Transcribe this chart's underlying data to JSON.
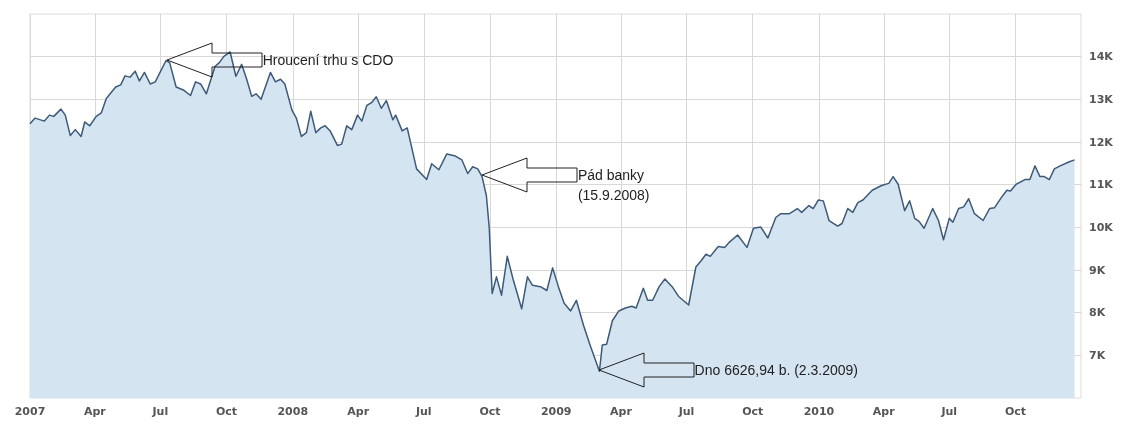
{
  "chart_data": {
    "type": "area",
    "x": [
      "2007-01-01",
      "2007-01-08",
      "2007-01-21",
      "2007-01-28",
      "2007-02-03",
      "2007-02-13",
      "2007-02-19",
      "2007-02-26",
      "2007-03-05",
      "2007-03-13",
      "2007-03-18",
      "2007-03-25",
      "2007-04-03",
      "2007-04-10",
      "2007-04-17",
      "2007-04-30",
      "2007-05-07",
      "2007-05-13",
      "2007-05-20",
      "2007-05-27",
      "2007-06-02",
      "2007-06-09",
      "2007-06-17",
      "2007-06-24",
      "2007-07-09",
      "2007-07-14",
      "2007-07-23",
      "2007-08-02",
      "2007-08-12",
      "2007-08-19",
      "2007-08-26",
      "2007-09-03",
      "2007-09-15",
      "2007-09-21",
      "2007-09-27",
      "2007-10-06",
      "2007-10-14",
      "2007-10-22",
      "2007-10-29",
      "2007-11-05",
      "2007-11-11",
      "2007-11-18",
      "2007-12-01",
      "2007-12-08",
      "2007-12-15",
      "2007-12-21",
      "2007-12-31",
      "2008-01-06",
      "2008-01-13",
      "2008-01-20",
      "2008-01-26",
      "2008-02-02",
      "2008-02-09",
      "2008-02-15",
      "2008-02-22",
      "2008-03-03",
      "2008-03-09",
      "2008-03-16",
      "2008-03-23",
      "2008-03-31",
      "2008-04-06",
      "2008-04-13",
      "2008-04-20",
      "2008-04-26",
      "2008-05-03",
      "2008-05-10",
      "2008-05-19",
      "2008-05-23",
      "2008-06-01",
      "2008-06-08",
      "2008-06-21",
      "2008-07-05",
      "2008-07-12",
      "2008-07-22",
      "2008-08-02",
      "2008-08-14",
      "2008-08-23",
      "2008-08-31",
      "2008-09-07",
      "2008-09-14",
      "2008-09-20",
      "2008-09-26",
      "2008-09-30",
      "2008-10-04",
      "2008-10-10",
      "2008-10-17",
      "2008-10-25",
      "2008-11-02",
      "2008-11-14",
      "2008-11-22",
      "2008-11-29",
      "2008-12-10",
      "2008-12-19",
      "2008-12-27",
      "2009-01-04",
      "2009-01-12",
      "2009-01-21",
      "2009-01-29",
      "2009-02-08",
      "2009-02-17",
      "2009-03-02",
      "2009-03-06",
      "2009-03-12",
      "2009-03-20",
      "2009-03-29",
      "2009-04-07",
      "2009-04-16",
      "2009-04-22",
      "2009-05-02",
      "2009-05-08",
      "2009-05-15",
      "2009-05-24",
      "2009-06-01",
      "2009-06-11",
      "2009-06-20",
      "2009-07-04",
      "2009-07-14",
      "2009-07-21",
      "2009-07-28",
      "2009-08-03",
      "2009-08-14",
      "2009-08-23",
      "2009-08-30",
      "2009-09-10",
      "2009-09-23",
      "2009-10-02",
      "2009-10-12",
      "2009-10-22",
      "2009-11-02",
      "2009-11-09",
      "2009-11-21",
      "2009-12-02",
      "2009-12-08",
      "2009-12-18",
      "2009-12-24",
      "2009-12-31",
      "2010-01-07",
      "2010-01-15",
      "2010-01-27",
      "2010-02-02",
      "2010-02-10",
      "2010-02-17",
      "2010-02-24",
      "2010-03-03",
      "2010-03-16",
      "2010-03-29",
      "2010-04-08",
      "2010-04-14",
      "2010-04-21",
      "2010-04-30",
      "2010-05-07",
      "2010-05-14",
      "2010-05-20",
      "2010-05-27",
      "2010-06-08",
      "2010-06-16",
      "2010-06-23",
      "2010-07-01",
      "2010-07-06",
      "2010-07-14",
      "2010-07-21",
      "2010-07-28",
      "2010-08-05",
      "2010-08-17",
      "2010-08-26",
      "2010-09-02",
      "2010-09-11",
      "2010-09-19",
      "2010-09-24",
      "2010-10-02",
      "2010-10-14",
      "2010-10-21",
      "2010-10-28",
      "2010-11-04",
      "2010-11-10",
      "2010-11-17",
      "2010-11-24",
      "2010-12-02",
      "2010-12-14",
      "2010-12-22"
    ],
    "series": [
      {
        "color": "#3d5a78",
        "values": [
          12430,
          12560,
          12490,
          12630,
          12600,
          12770,
          12630,
          12150,
          12290,
          12130,
          12470,
          12380,
          12600,
          12680,
          13020,
          13290,
          13340,
          13550,
          13520,
          13660,
          13430,
          13630,
          13360,
          13410,
          13910,
          13860,
          13290,
          13220,
          13090,
          13410,
          13360,
          13130,
          13770,
          13860,
          14000,
          14110,
          13540,
          13820,
          13470,
          13070,
          13130,
          13000,
          13630,
          13410,
          13470,
          13360,
          12740,
          12560,
          12130,
          12220,
          12720,
          12220,
          12330,
          12380,
          12260,
          11920,
          11950,
          12380,
          12290,
          12630,
          12490,
          12860,
          12930,
          13060,
          12790,
          12970,
          12520,
          12630,
          12260,
          12330,
          11370,
          11120,
          11490,
          11350,
          11720,
          11670,
          11580,
          11260,
          11420,
          11370,
          11190,
          10740,
          9980,
          8450,
          8840,
          8410,
          9320,
          8790,
          8090,
          8840,
          8640,
          8610,
          8520,
          9050,
          8610,
          8220,
          8040,
          8290,
          7700,
          7240,
          6626.94,
          7240,
          7260,
          7810,
          8040,
          8110,
          8150,
          8110,
          8570,
          8290,
          8290,
          8610,
          8790,
          8610,
          8380,
          8180,
          9070,
          9210,
          9370,
          9320,
          9550,
          9530,
          9660,
          9820,
          9530,
          9980,
          10010,
          9750,
          10230,
          10320,
          10320,
          10440,
          10350,
          10510,
          10440,
          10640,
          10620,
          10160,
          10030,
          10090,
          10440,
          10350,
          10580,
          10640,
          10870,
          10980,
          11030,
          11190,
          11010,
          10390,
          10620,
          10210,
          10140,
          9980,
          10440,
          10160,
          9710,
          10210,
          10120,
          10440,
          10480,
          10670,
          10320,
          10160,
          10440,
          10460,
          10690,
          10870,
          10850,
          11010,
          11120,
          11120,
          11440,
          11190,
          11190,
          11120,
          11370,
          11440,
          11530,
          11580
        ]
      }
    ],
    "xlim": [
      "2007-01-01",
      "2010-12-31"
    ],
    "xticks": [
      {
        "value": "2007-01-01",
        "label": "2007"
      },
      {
        "value": "2007-04-01",
        "label": "Apr"
      },
      {
        "value": "2007-07-01",
        "label": "Jul"
      },
      {
        "value": "2007-10-01",
        "label": "Oct"
      },
      {
        "value": "2008-01-01",
        "label": "2008"
      },
      {
        "value": "2008-04-01",
        "label": "Apr"
      },
      {
        "value": "2008-07-01",
        "label": "Jul"
      },
      {
        "value": "2008-10-01",
        "label": "Oct"
      },
      {
        "value": "2009-01-01",
        "label": "2009"
      },
      {
        "value": "2009-04-01",
        "label": "Apr"
      },
      {
        "value": "2009-07-01",
        "label": "Jul"
      },
      {
        "value": "2009-10-01",
        "label": "Oct"
      },
      {
        "value": "2010-01-01",
        "label": "2010"
      },
      {
        "value": "2010-04-01",
        "label": "Apr"
      },
      {
        "value": "2010-07-01",
        "label": "Jul"
      },
      {
        "value": "2010-10-01",
        "label": "Oct"
      }
    ],
    "ylim": [
      6000,
      15000
    ],
    "yticks": [
      {
        "value": 7000,
        "label": "7K"
      },
      {
        "value": 8000,
        "label": "8K"
      },
      {
        "value": 9000,
        "label": "9K"
      },
      {
        "value": 10000,
        "label": "10K"
      },
      {
        "value": 11000,
        "label": "11K"
      },
      {
        "value": 12000,
        "label": "12K"
      },
      {
        "value": 13000,
        "label": "13K"
      },
      {
        "value": 14000,
        "label": "14K"
      }
    ],
    "annotations": [
      "Hroucení trhu s CDO",
      "Pád banky\n(15.9.2008)",
      "Dno 6626,94 b. (2.3.2009)"
    ],
    "grid": true,
    "marker": "none",
    "line_style": "solid"
  }
}
